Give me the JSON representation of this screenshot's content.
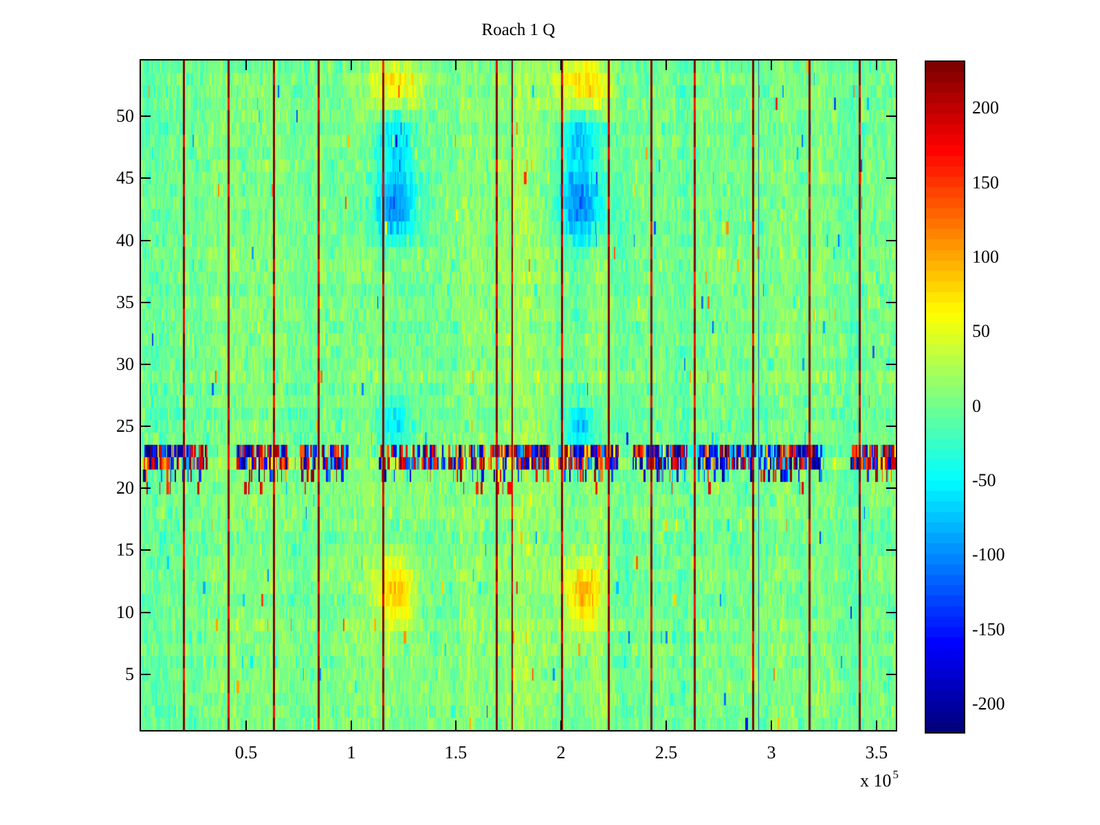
{
  "figure": {
    "title": "Roach 1 Q",
    "background": "#ffffff"
  },
  "x_axis": {
    "tick_labels": [
      "0.5",
      "1",
      "1.5",
      "2",
      "2.5",
      "3",
      "3.5"
    ],
    "tick_values": [
      50000,
      100000,
      150000,
      200000,
      250000,
      300000,
      350000
    ],
    "exponent_prefix": "x 10",
    "exponent": "5",
    "range": [
      0,
      359300
    ]
  },
  "y_axis": {
    "tick_labels": [
      "5",
      "10",
      "15",
      "20",
      "25",
      "30",
      "35",
      "40",
      "45",
      "50"
    ],
    "tick_values": [
      5,
      10,
      15,
      20,
      25,
      30,
      35,
      40,
      45,
      50
    ],
    "range": [
      0.5,
      54.5
    ]
  },
  "colorbar": {
    "tick_labels": [
      "200",
      "150",
      "100",
      "50",
      "0",
      "-50",
      "-100",
      "-150",
      "-200"
    ],
    "tick_values": [
      200,
      150,
      100,
      50,
      0,
      -50,
      -100,
      -150,
      -200
    ],
    "range": [
      -219,
      231
    ],
    "colormap": "jet"
  },
  "chart_data": {
    "type": "heatmap",
    "title": "Roach 1 Q",
    "rows": 54,
    "x_range": [
      0,
      359300
    ],
    "y_range": [
      0.5,
      54.5
    ],
    "clim": [
      -219,
      231
    ],
    "colormap": "jet",
    "background_level": 0,
    "noise_sigma": 13,
    "vertical_marker_lines_x": [
      20300,
      41500,
      63100,
      84400,
      115200,
      169200,
      176700,
      200300,
      222500,
      242800,
      263400,
      291200,
      318100,
      342000
    ],
    "thin_blue_line_x": 293800,
    "noise_band_rows": [
      21,
      23
    ],
    "band_clusters_x": [
      [
        1600,
        31700,
        1.0
      ],
      [
        45800,
        70300,
        1.0
      ],
      [
        75900,
        84100,
        0.9
      ],
      [
        86100,
        98200,
        0.9
      ],
      [
        113500,
        145000,
        0.55
      ],
      [
        146300,
        163600,
        0.8
      ],
      [
        165900,
        194700,
        1.0
      ],
      [
        198600,
        227400,
        1.0
      ],
      [
        234000,
        260100,
        1.0
      ],
      [
        265100,
        292900,
        1.0
      ],
      [
        294500,
        324000,
        1.0
      ],
      [
        338000,
        359300,
        1.0
      ]
    ],
    "blue_negative_zone_x": [
      252000,
      325600
    ],
    "blobs": [
      {
        "x": 121000,
        "x_sigma": 7500,
        "rows": [
          41,
          45
        ],
        "value": -100
      },
      {
        "x": 121000,
        "x_sigma": 6500,
        "rows": [
          47,
          50
        ],
        "value": -70
      },
      {
        "x": 121000,
        "x_sigma": 9000,
        "rows": [
          51,
          54
        ],
        "value": 75
      },
      {
        "x": 121000,
        "x_sigma": 5500,
        "rows": [
          24,
          26
        ],
        "value": -55
      },
      {
        "x": 121000,
        "x_sigma": 6000,
        "rows": [
          10,
          13
        ],
        "value": 85
      },
      {
        "x": 121000,
        "x_sigma": 12000,
        "rows": [
          1,
          20
        ],
        "value": 10
      },
      {
        "x": 210000,
        "x_sigma": 7500,
        "rows": [
          41,
          45
        ],
        "value": -105
      },
      {
        "x": 210000,
        "x_sigma": 6500,
        "rows": [
          47,
          50
        ],
        "value": -75
      },
      {
        "x": 210000,
        "x_sigma": 9000,
        "rows": [
          51,
          54
        ],
        "value": 85
      },
      {
        "x": 210000,
        "x_sigma": 5500,
        "rows": [
          24,
          26
        ],
        "value": -70
      },
      {
        "x": 210000,
        "x_sigma": 6000,
        "rows": [
          10,
          13
        ],
        "value": 90
      },
      {
        "x": 210000,
        "x_sigma": 12000,
        "rows": [
          1,
          20
        ],
        "value": 10
      }
    ]
  }
}
